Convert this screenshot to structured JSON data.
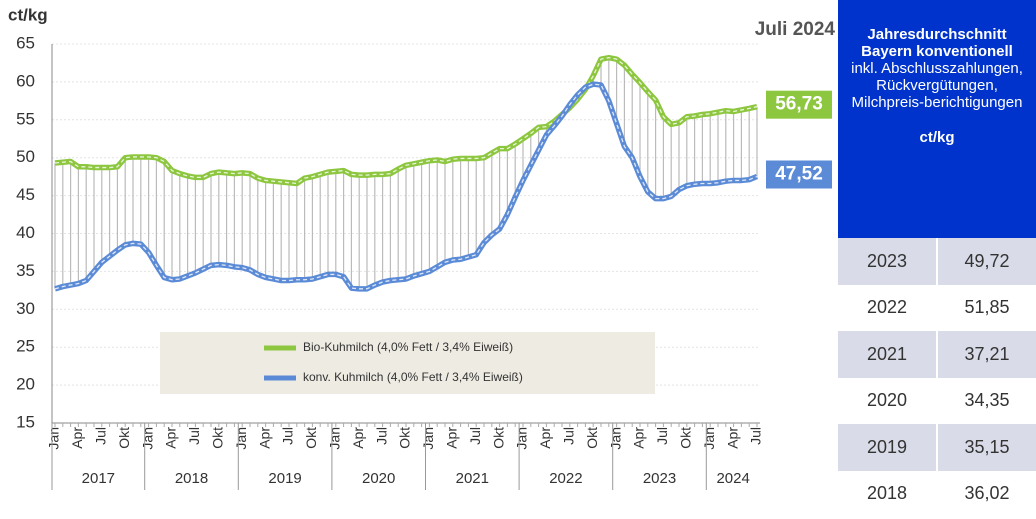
{
  "chart_data": {
    "type": "line",
    "y_label": "ct/kg",
    "period": "Juli 2024",
    "categories": [
      "Jan",
      null,
      null,
      "Apr",
      null,
      null,
      "Jul",
      null,
      null,
      "Okt",
      null,
      null,
      "Jan",
      null,
      null,
      "Apr",
      null,
      null,
      "Jul",
      null,
      null,
      "Okt",
      null,
      null,
      "Jan",
      null,
      null,
      "Apr",
      null,
      null,
      "Jul",
      null,
      null,
      "Okt",
      null,
      null,
      "Jan",
      null,
      null,
      "Apr",
      null,
      null,
      "Jul",
      null,
      null,
      "Okt",
      null,
      null,
      "Jan",
      null,
      null,
      "Apr",
      null,
      null,
      "Jul",
      null,
      null,
      "Okt",
      null,
      null,
      "Jan",
      null,
      null,
      "Apr",
      null,
      null,
      "Jul",
      null,
      null,
      "Okt",
      null,
      null,
      "Jan",
      null,
      null,
      "Apr",
      null,
      null,
      "Jul",
      null,
      null,
      "Okt",
      null,
      null,
      "Jan",
      null,
      null,
      "Apr",
      null,
      null,
      "Jul"
    ],
    "year_groups": [
      "2017",
      "2018",
      "2019",
      "2020",
      "2021",
      "2022",
      "2023",
      "2024"
    ],
    "series": [
      {
        "name": "Bio-Kuhmilch (4,0% Fett / 3,4% Eiweiß)",
        "color": "#8dc63f",
        "end_label": "56,73",
        "values": [
          49.3,
          49.4,
          49.5,
          48.8,
          48.8,
          48.7,
          48.7,
          48.7,
          48.8,
          50.0,
          50.1,
          50.1,
          50.1,
          50.0,
          49.5,
          48.3,
          47.9,
          47.6,
          47.4,
          47.4,
          47.9,
          48.1,
          48.0,
          47.9,
          48.0,
          47.9,
          47.3,
          47.0,
          46.9,
          46.8,
          46.7,
          46.6,
          47.3,
          47.5,
          47.8,
          48.1,
          48.2,
          48.3,
          47.8,
          47.7,
          47.7,
          47.8,
          47.8,
          47.9,
          48.5,
          49.0,
          49.2,
          49.4,
          49.6,
          49.7,
          49.5,
          49.8,
          49.9,
          49.9,
          49.9,
          50.0,
          50.6,
          51.2,
          51.2,
          51.8,
          52.5,
          53.2,
          54.0,
          54.1,
          54.8,
          55.7,
          56.6,
          57.7,
          59.0,
          60.8,
          63.0,
          63.2,
          63.0,
          62.2,
          61.0,
          59.9,
          58.7,
          57.6,
          55.4,
          54.4,
          54.6,
          55.4,
          55.5,
          55.7,
          55.8,
          56.0,
          56.2,
          56.1,
          56.3,
          56.5,
          56.73
        ]
      },
      {
        "name": "konv. Kuhmilch (4,0% Fett / 3,4% Eiweiß)",
        "color": "#5b8bd6",
        "end_label": "47,52",
        "values": [
          32.7,
          33.0,
          33.2,
          33.4,
          33.8,
          35.0,
          36.2,
          37.0,
          37.8,
          38.5,
          38.7,
          38.6,
          37.5,
          35.8,
          34.2,
          33.9,
          34.0,
          34.4,
          34.8,
          35.3,
          35.8,
          35.9,
          35.8,
          35.6,
          35.5,
          35.2,
          34.6,
          34.2,
          34.0,
          33.8,
          33.8,
          33.9,
          33.9,
          34.0,
          34.3,
          34.6,
          34.6,
          34.3,
          32.8,
          32.7,
          32.7,
          33.2,
          33.6,
          33.8,
          33.9,
          34.0,
          34.4,
          34.7,
          35.0,
          35.6,
          36.2,
          36.5,
          36.6,
          36.9,
          37.2,
          38.8,
          39.8,
          40.6,
          42.5,
          44.8,
          47.0,
          49.0,
          51.0,
          53.0,
          54.2,
          55.5,
          57.0,
          58.3,
          59.3,
          59.7,
          59.6,
          57.5,
          54.5,
          51.5,
          50.0,
          47.5,
          45.5,
          44.6,
          44.6,
          44.9,
          45.8,
          46.3,
          46.5,
          46.6,
          46.6,
          46.7,
          46.9,
          47.0,
          47.0,
          47.1,
          47.52
        ]
      }
    ],
    "ylim": [
      15,
      65
    ],
    "yticks": [
      15,
      20,
      25,
      30,
      35,
      40,
      45,
      50,
      55,
      60,
      65
    ],
    "grid": true
  },
  "table": {
    "header": {
      "title": "Jahresdurchschnitt Bayern konventionell",
      "note": "inkl. Abschlusszahlungen, Rückvergütungen, Milchpreis-berichtigungen",
      "unit": "ct/kg"
    },
    "rows": [
      [
        "2023",
        "49,72"
      ],
      [
        "2022",
        "51,85"
      ],
      [
        "2021",
        "37,21"
      ],
      [
        "2020",
        "34,35"
      ],
      [
        "2019",
        "35,15"
      ],
      [
        "2018",
        "36,02"
      ]
    ]
  }
}
